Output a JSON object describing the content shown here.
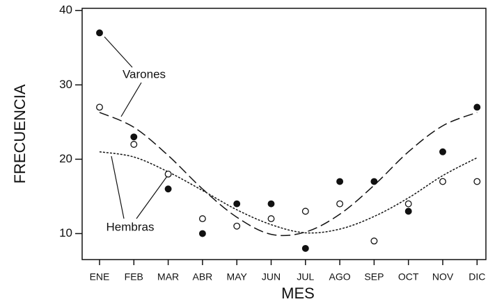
{
  "chart_data": {
    "type": "scatter",
    "x_label": "MES",
    "y_label": "FRECUENCIA",
    "categories": [
      "ENE",
      "FEB",
      "MAR",
      "ABR",
      "MAY",
      "JUN",
      "JUL",
      "AGO",
      "SEP",
      "OCT",
      "NOV",
      "DIC"
    ],
    "series": [
      {
        "name": "Varones",
        "color": "#111111",
        "marker": "filled",
        "dash": "long",
        "values": [
          37,
          23,
          16,
          10,
          14,
          14,
          8,
          17,
          17,
          13,
          21,
          27
        ],
        "fit": [
          26.3,
          24.3,
          20.5,
          16,
          12.2,
          9.9,
          10.2,
          12.6,
          16.5,
          21,
          24.5,
          26.3
        ]
      },
      {
        "name": "Hembras",
        "color": "#111111",
        "marker": "open",
        "dash": "short",
        "values": [
          27,
          22,
          18,
          12,
          11,
          12,
          13,
          14,
          9,
          14,
          17,
          17
        ],
        "fit": [
          21,
          20.3,
          18.3,
          15.8,
          13.2,
          11.2,
          10.1,
          10.6,
          12.3,
          14.8,
          17.8,
          20.2
        ]
      }
    ],
    "ylim": [
      6.5,
      40.3
    ],
    "yticks": [
      10,
      20,
      30,
      40
    ]
  }
}
